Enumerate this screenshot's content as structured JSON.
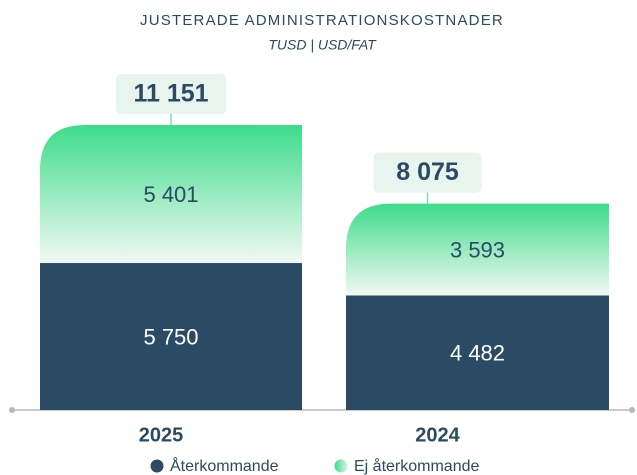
{
  "chart_data": {
    "type": "stacked-bar",
    "title": "JUSTERADE ADMINISTRATIONSKOSTNADER",
    "subtitle": "TUSD | USD/FAT",
    "categories": [
      "2025",
      "2024"
    ],
    "series": [
      {
        "name": "Återkommande",
        "color": "#2a4b63",
        "values": [
          5750,
          4482
        ],
        "value_labels": [
          "5 750",
          "4 482"
        ]
      },
      {
        "name": "Ej återkommande",
        "color": "#3ddc8a",
        "values": [
          5401,
          3593
        ],
        "value_labels": [
          "5 401",
          "3 593"
        ]
      }
    ],
    "totals": {
      "values": [
        11151,
        8075
      ],
      "value_labels": [
        "11 151",
        "8 075"
      ]
    }
  }
}
